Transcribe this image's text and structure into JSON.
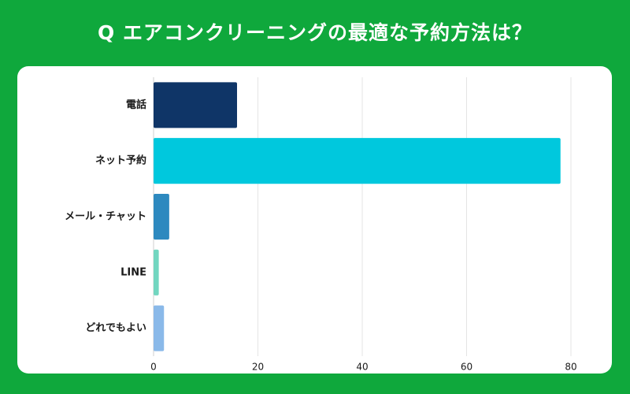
{
  "title": "Q エアコンクリーニングの最適な予約方法は？",
  "chart_data": {
    "type": "bar",
    "orientation": "horizontal",
    "title": "Q エアコンクリーニングの最適な予約方法は？",
    "categories": [
      "電話",
      "ネット予約",
      "メール・チャット",
      "LINE",
      "どれでもよい"
    ],
    "values": [
      16,
      78,
      3,
      1,
      2
    ],
    "colors": [
      "#0f3567",
      "#00c8dd",
      "#2d89bf",
      "#72d6c0",
      "#8ab9e9"
    ],
    "xlim": [
      0,
      80
    ],
    "xticks": [
      0,
      20,
      40,
      60,
      80
    ],
    "xlabel": "",
    "ylabel": "",
    "grid": true
  }
}
